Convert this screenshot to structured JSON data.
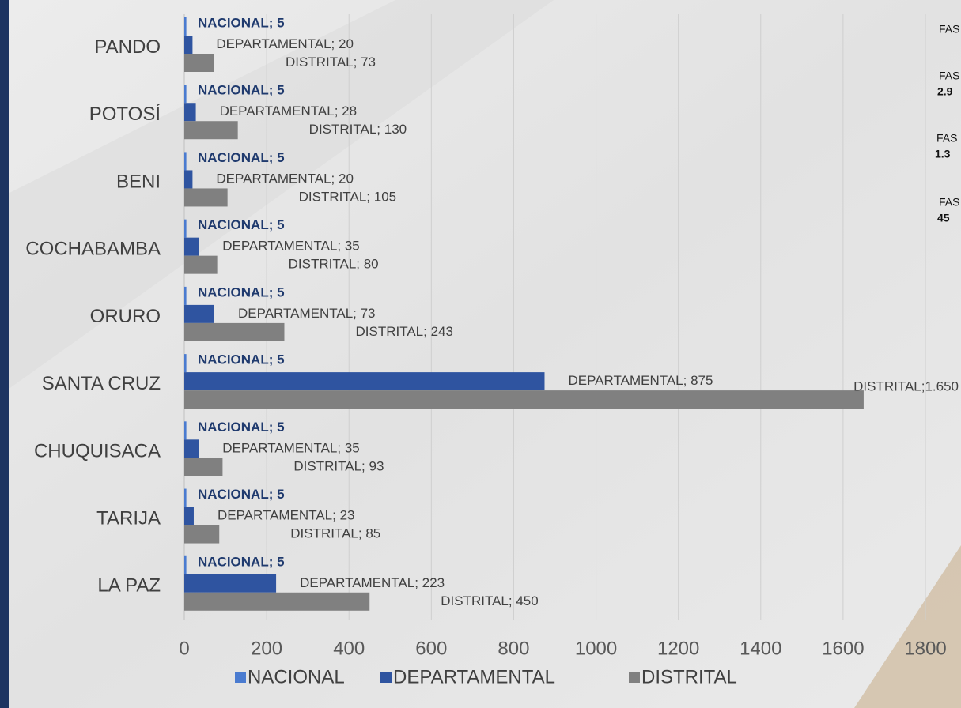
{
  "chart_data": {
    "type": "bar",
    "orientation": "horizontal",
    "categories": [
      "PANDO",
      "POTOSÍ",
      "BENI",
      "COCHABAMBA",
      "ORURO",
      "SANTA CRUZ",
      "CHUQUISACA",
      "TARIJA",
      "LA PAZ"
    ],
    "series": [
      {
        "name": "NACIONAL",
        "color": "#4a7bd0",
        "values": [
          5,
          5,
          5,
          5,
          5,
          5,
          5,
          5,
          5
        ],
        "value_labels": [
          "NACIONAL; 5",
          "NACIONAL; 5",
          "NACIONAL; 5",
          "NACIONAL; 5",
          "NACIONAL; 5",
          "NACIONAL; 5",
          "NACIONAL; 5",
          "NACIONAL; 5",
          "NACIONAL; 5"
        ]
      },
      {
        "name": "DEPARTAMENTAL",
        "color": "#2f54a0",
        "values": [
          20,
          28,
          20,
          35,
          73,
          875,
          35,
          23,
          223
        ],
        "value_labels": [
          "DEPARTAMENTAL; 20",
          "DEPARTAMENTAL; 28",
          "DEPARTAMENTAL; 20",
          "DEPARTAMENTAL; 35",
          "DEPARTAMENTAL; 73",
          "DEPARTAMENTAL; 875",
          "DEPARTAMENTAL; 35",
          "DEPARTAMENTAL; 23",
          "DEPARTAMENTAL; 223"
        ]
      },
      {
        "name": "DISTRITAL",
        "color": "#808080",
        "values": [
          73,
          130,
          105,
          80,
          243,
          1650,
          93,
          85,
          450
        ],
        "value_labels": [
          "DISTRITAL; 73",
          "DISTRITAL; 130",
          "DISTRITAL; 105",
          "DISTRITAL; 80",
          "DISTRITAL; 243",
          "DISTRITAL;1.650",
          "DISTRITAL; 93",
          "DISTRITAL; 85",
          "DISTRITAL; 450"
        ]
      }
    ],
    "xlim": [
      0,
      1800
    ],
    "xticks": [
      0,
      200,
      400,
      600,
      800,
      1000,
      1200,
      1400,
      1600,
      1800
    ],
    "grid": true,
    "legend": "bottom",
    "annotations": [
      {
        "label": "FAS"
      },
      {
        "label": "FAS",
        "value": "2.9"
      },
      {
        "label": "FAS",
        "value": "1.3"
      },
      {
        "label": "FAS",
        "value": "45"
      }
    ]
  }
}
